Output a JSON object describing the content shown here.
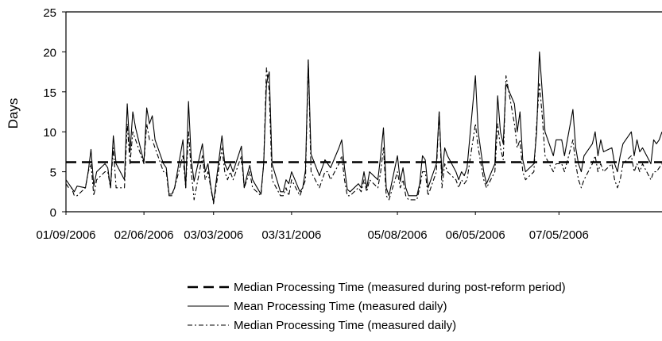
{
  "chart_data": {
    "type": "line",
    "title": "",
    "xlabel": "",
    "ylabel": "Days",
    "ylim": [
      0,
      25
    ],
    "yticks": [
      0,
      5,
      10,
      15,
      20,
      25
    ],
    "xlim": [
      "01/09/2006",
      "08/11/2006"
    ],
    "xtick_labels": [
      "01/09/2006",
      "02/06/2006",
      "03/03/2006",
      "03/31/2006",
      "05/08/2006",
      "06/05/2006",
      "07/05/2006"
    ],
    "grid": false,
    "legend_position": "bottom",
    "series": [
      {
        "name": "Median Processing Time (measured during post-reform period)",
        "style": "dashed-thick",
        "color": "#000000",
        "x": [
          "01/09/2006",
          "08/11/2006"
        ],
        "values": [
          6.2,
          6.2
        ]
      },
      {
        "name": "Mean Processing Time (measured daily)",
        "style": "solid-thin",
        "color": "#000000",
        "x": [
          "01/09/2006",
          "01/10/2006",
          "01/11/2006",
          "01/12/2006",
          "01/13/2006",
          "01/16/2006",
          "01/17/2006",
          "01/18/2006",
          "01/19/2006",
          "01/20/2006",
          "01/23/2006",
          "01/24/2006",
          "01/25/2006",
          "01/26/2006",
          "01/27/2006",
          "01/30/2006",
          "01/31/2006",
          "02/01/2006",
          "02/02/2006",
          "02/03/2006",
          "02/06/2006",
          "02/07/2006",
          "02/08/2006",
          "02/09/2006",
          "02/10/2006",
          "02/13/2006",
          "02/14/2006",
          "02/15/2006",
          "02/16/2006",
          "02/17/2006",
          "02/20/2006",
          "02/21/2006",
          "02/22/2006",
          "02/23/2006",
          "02/24/2006",
          "02/27/2006",
          "02/28/2006",
          "03/01/2006",
          "03/02/2006",
          "03/03/2006",
          "03/06/2006",
          "03/07/2006",
          "03/08/2006",
          "03/09/2006",
          "03/10/2006",
          "03/13/2006",
          "03/14/2006",
          "03/15/2006",
          "03/16/2006",
          "03/17/2006",
          "03/20/2006",
          "03/21/2006",
          "03/22/2006",
          "03/23/2006",
          "03/24/2006",
          "03/27/2006",
          "03/28/2006",
          "03/29/2006",
          "03/30/2006",
          "03/31/2006",
          "04/03/2006",
          "04/04/2006",
          "04/05/2006",
          "04/06/2006",
          "04/07/2006",
          "04/10/2006",
          "04/11/2006",
          "04/12/2006",
          "04/13/2006",
          "04/14/2006",
          "04/17/2006",
          "04/18/2006",
          "04/19/2006",
          "04/20/2006",
          "04/21/2006",
          "04/24/2006",
          "04/25/2006",
          "04/26/2006",
          "04/27/2006",
          "04/28/2006",
          "05/01/2006",
          "05/02/2006",
          "05/03/2006",
          "05/04/2006",
          "05/05/2006",
          "05/08/2006",
          "05/09/2006",
          "05/10/2006",
          "05/11/2006",
          "05/12/2006",
          "05/15/2006",
          "05/16/2006",
          "05/17/2006",
          "05/18/2006",
          "05/19/2006",
          "05/22/2006",
          "05/23/2006",
          "05/24/2006",
          "05/25/2006",
          "05/26/2006",
          "05/29/2006",
          "05/30/2006",
          "05/31/2006",
          "06/01/2006",
          "06/02/2006",
          "06/05/2006",
          "06/06/2006",
          "06/07/2006",
          "06/08/2006",
          "06/09/2006",
          "06/12/2006",
          "06/13/2006",
          "06/14/2006",
          "06/15/2006",
          "06/16/2006",
          "06/19/2006",
          "06/20/2006",
          "06/21/2006",
          "06/22/2006",
          "06/23/2006",
          "06/26/2006",
          "06/27/2006",
          "06/28/2006",
          "06/29/2006",
          "06/30/2006",
          "07/03/2006",
          "07/04/2006",
          "07/05/2006",
          "07/06/2006",
          "07/07/2006",
          "07/10/2006",
          "07/11/2006",
          "07/12/2006",
          "07/13/2006",
          "07/14/2006",
          "07/17/2006",
          "07/18/2006",
          "07/19/2006",
          "07/20/2006",
          "07/21/2006",
          "07/24/2006",
          "07/25/2006",
          "07/26/2006",
          "07/27/2006",
          "07/28/2006",
          "07/31/2006",
          "08/01/2006",
          "08/02/2006",
          "08/03/2006",
          "08/04/2006",
          "08/07/2006",
          "08/08/2006",
          "08/09/2006",
          "08/10/2006",
          "08/11/2006"
        ],
        "values": [
          4.0,
          3.5,
          3.0,
          2.5,
          3.2,
          3.0,
          5.0,
          7.8,
          3.2,
          5.0,
          6.0,
          5.5,
          3.0,
          9.5,
          6.0,
          4.0,
          13.5,
          7.5,
          12.5,
          10.5,
          6.2,
          13.0,
          11.0,
          12.0,
          9.0,
          6.0,
          5.5,
          2.2,
          2.2,
          3.0,
          9.0,
          3.0,
          13.8,
          6.5,
          3.8,
          8.5,
          5.0,
          6.0,
          3.2,
          1.2,
          9.5,
          6.0,
          5.2,
          6.0,
          5.0,
          8.2,
          3.0,
          4.5,
          5.8,
          4.0,
          2.2,
          6.0,
          16.0,
          17.5,
          6.0,
          2.5,
          2.5,
          4.0,
          3.5,
          5.0,
          2.5,
          3.0,
          5.2,
          19.0,
          7.2,
          4.5,
          5.5,
          6.5,
          6.0,
          5.5,
          8.0,
          9.0,
          5.5,
          2.8,
          2.5,
          3.5,
          3.0,
          5.0,
          3.0,
          5.0,
          4.0,
          7.0,
          10.5,
          3.0,
          2.0,
          7.0,
          3.8,
          5.5,
          3.0,
          2.0,
          2.0,
          3.5,
          7.0,
          6.5,
          3.0,
          6.0,
          12.5,
          4.5,
          8.0,
          7.0,
          5.0,
          4.0,
          5.0,
          4.5,
          5.5,
          17.0,
          10.0,
          7.5,
          5.0,
          3.5,
          6.0,
          14.5,
          10.0,
          8.5,
          16.0,
          13.5,
          10.0,
          12.5,
          6.5,
          5.0,
          6.0,
          10.0,
          20.0,
          15.0,
          10.0,
          7.0,
          9.0,
          9.0,
          9.0,
          7.0,
          12.8,
          8.0,
          6.0,
          5.0,
          7.0,
          8.5,
          10.0,
          7.0,
          9.0,
          7.5,
          8.0,
          6.0,
          5.0,
          7.0,
          8.5,
          10.0,
          7.0,
          9.0,
          7.5,
          8.0,
          6.0,
          9.0,
          8.5,
          9.0,
          10.0
        ],
        "values_note": ""
      },
      {
        "name": "Median Processing Time (measured daily)",
        "style": "dash-dot-thin",
        "color": "#000000",
        "x": [
          "01/09/2006",
          "01/10/2006",
          "01/11/2006",
          "01/12/2006",
          "01/13/2006",
          "01/16/2006",
          "01/17/2006",
          "01/18/2006",
          "01/19/2006",
          "01/20/2006",
          "01/23/2006",
          "01/24/2006",
          "01/25/2006",
          "01/26/2006",
          "01/27/2006",
          "01/30/2006",
          "01/31/2006",
          "02/01/2006",
          "02/02/2006",
          "02/03/2006",
          "02/06/2006",
          "02/07/2006",
          "02/08/2006",
          "02/09/2006",
          "02/10/2006",
          "02/13/2006",
          "02/14/2006",
          "02/15/2006",
          "02/16/2006",
          "02/17/2006",
          "02/20/2006",
          "02/21/2006",
          "02/22/2006",
          "02/23/2006",
          "02/24/2006",
          "02/27/2006",
          "02/28/2006",
          "03/01/2006",
          "03/02/2006",
          "03/03/2006",
          "03/06/2006",
          "03/07/2006",
          "03/08/2006",
          "03/09/2006",
          "03/10/2006",
          "03/13/2006",
          "03/14/2006",
          "03/15/2006",
          "03/16/2006",
          "03/17/2006",
          "03/20/2006",
          "03/21/2006",
          "03/22/2006",
          "03/23/2006",
          "03/24/2006",
          "03/27/2006",
          "03/28/2006",
          "03/29/2006",
          "03/30/2006",
          "03/31/2006",
          "04/03/2006",
          "04/04/2006",
          "04/05/2006",
          "04/06/2006",
          "04/07/2006",
          "04/10/2006",
          "04/11/2006",
          "04/12/2006",
          "04/13/2006",
          "04/14/2006",
          "04/17/2006",
          "04/18/2006",
          "04/19/2006",
          "04/20/2006",
          "04/21/2006",
          "04/24/2006",
          "04/25/2006",
          "04/26/2006",
          "04/27/2006",
          "04/28/2006",
          "05/01/2006",
          "05/02/2006",
          "05/03/2006",
          "05/04/2006",
          "05/05/2006",
          "05/08/2006",
          "05/09/2006",
          "05/10/2006",
          "05/11/2006",
          "05/12/2006",
          "05/15/2006",
          "05/16/2006",
          "05/17/2006",
          "05/18/2006",
          "05/19/2006",
          "05/22/2006",
          "05/23/2006",
          "05/24/2006",
          "05/25/2006",
          "05/26/2006",
          "05/29/2006",
          "05/30/2006",
          "05/31/2006",
          "06/01/2006",
          "06/02/2006",
          "06/05/2006",
          "06/06/2006",
          "06/07/2006",
          "06/08/2006",
          "06/09/2006",
          "06/12/2006",
          "06/13/2006",
          "06/14/2006",
          "06/15/2006",
          "06/16/2006",
          "06/19/2006",
          "06/20/2006",
          "06/21/2006",
          "06/22/2006",
          "06/23/2006",
          "06/26/2006",
          "06/27/2006",
          "06/28/2006",
          "06/29/2006",
          "06/30/2006",
          "07/03/2006",
          "07/04/2006",
          "07/05/2006",
          "07/06/2006",
          "07/07/2006",
          "07/10/2006",
          "07/11/2006",
          "07/12/2006",
          "07/13/2006",
          "07/14/2006",
          "07/17/2006",
          "07/18/2006",
          "07/19/2006",
          "07/20/2006",
          "07/21/2006",
          "07/24/2006",
          "07/25/2006",
          "07/26/2006",
          "07/27/2006",
          "07/28/2006",
          "07/31/2006",
          "08/01/2006",
          "08/02/2006",
          "08/03/2006",
          "08/04/2006",
          "08/07/2006",
          "08/08/2006",
          "08/09/2006",
          "08/10/2006",
          "08/11/2006"
        ],
        "values": [
          3.5,
          3.0,
          3.0,
          2.0,
          2.0,
          3.0,
          5.0,
          6.0,
          2.0,
          4.0,
          5.0,
          5.0,
          3.0,
          8.0,
          3.0,
          3.0,
          11.0,
          6.0,
          10.0,
          9.0,
          6.0,
          11.0,
          9.0,
          9.0,
          8.0,
          5.0,
          5.0,
          2.0,
          2.0,
          3.0,
          7.0,
          3.0,
          10.0,
          5.0,
          1.5,
          7.0,
          4.0,
          5.0,
          3.0,
          1.0,
          8.0,
          5.0,
          4.0,
          5.0,
          4.0,
          7.0,
          3.0,
          4.0,
          5.0,
          3.0,
          2.0,
          6.0,
          18.0,
          15.0,
          4.0,
          2.0,
          2.0,
          3.0,
          2.0,
          4.0,
          2.0,
          3.0,
          4.0,
          19.0,
          5.0,
          3.0,
          4.0,
          5.0,
          5.0,
          4.0,
          6.0,
          7.0,
          4.0,
          2.0,
          2.0,
          3.0,
          2.5,
          4.0,
          2.5,
          4.0,
          3.0,
          5.0,
          8.0,
          2.0,
          1.5,
          5.0,
          3.0,
          4.0,
          2.0,
          1.5,
          1.5,
          3.0,
          5.0,
          5.0,
          2.0,
          5.0,
          12.5,
          3.0,
          6.0,
          5.0,
          4.0,
          3.0,
          4.0,
          3.5,
          4.0,
          11.0,
          8.0,
          6.0,
          4.0,
          3.0,
          5.0,
          11.0,
          8.0,
          6.5,
          17.0,
          11.0,
          8.0,
          9.0,
          5.0,
          4.0,
          5.0,
          11.0,
          16.0,
          12.0,
          7.0,
          5.0,
          6.0,
          6.0,
          6.0,
          5.0,
          9.0,
          6.0,
          4.0,
          3.0,
          4.0,
          6.0,
          7.0,
          5.0,
          6.0,
          5.0,
          6.0,
          4.0,
          3.0,
          4.0,
          6.0,
          7.0,
          5.0,
          6.0,
          5.0,
          6.0,
          4.0,
          5.0,
          5.0,
          5.5,
          6.0
        ],
        "values_note": ""
      }
    ]
  }
}
